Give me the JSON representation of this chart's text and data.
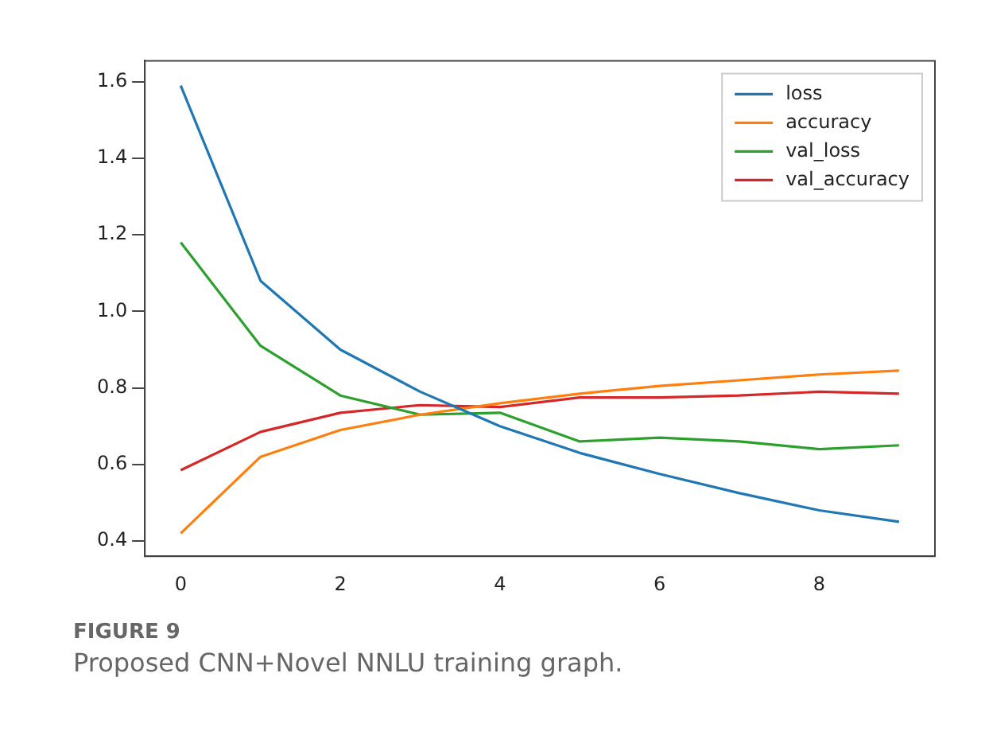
{
  "chart_data": {
    "type": "line",
    "x": [
      0,
      1,
      2,
      3,
      4,
      5,
      6,
      7,
      8,
      9
    ],
    "series": [
      {
        "name": "loss",
        "color": "#1f77b4",
        "values": [
          1.59,
          1.08,
          0.9,
          0.79,
          0.7,
          0.63,
          0.575,
          0.525,
          0.48,
          0.45
        ]
      },
      {
        "name": "accuracy",
        "color": "#ff7f0e",
        "values": [
          0.42,
          0.62,
          0.69,
          0.73,
          0.76,
          0.785,
          0.805,
          0.82,
          0.835,
          0.845
        ]
      },
      {
        "name": "val_loss",
        "color": "#2ca02c",
        "values": [
          1.18,
          0.91,
          0.78,
          0.73,
          0.735,
          0.66,
          0.67,
          0.66,
          0.64,
          0.65
        ]
      },
      {
        "name": "val_accuracy",
        "color": "#d62728",
        "values": [
          0.585,
          0.685,
          0.735,
          0.755,
          0.75,
          0.775,
          0.775,
          0.78,
          0.79,
          0.785
        ]
      }
    ],
    "xlim": [
      -0.45,
      9.45
    ],
    "xticks": [
      0,
      2,
      4,
      6,
      8
    ],
    "ylim": [
      0.36,
      1.655
    ],
    "yticks": [
      {
        "value": 0.4,
        "label": "0.4"
      },
      {
        "value": 0.6,
        "label": "0.6"
      },
      {
        "value": 0.8,
        "label": "0.8"
      },
      {
        "value": 1.0,
        "label": "1.0"
      },
      {
        "value": 1.2,
        "label": "1.2"
      },
      {
        "value": 1.4,
        "label": "1.4"
      },
      {
        "value": 1.6,
        "label": "1.6"
      }
    ],
    "grid": false,
    "legend": "top right",
    "marker": "none",
    "line_style": "solid",
    "annotations": [
      "FIGURE 9",
      "Proposed CNN+Novel NNLU training graph."
    ]
  }
}
